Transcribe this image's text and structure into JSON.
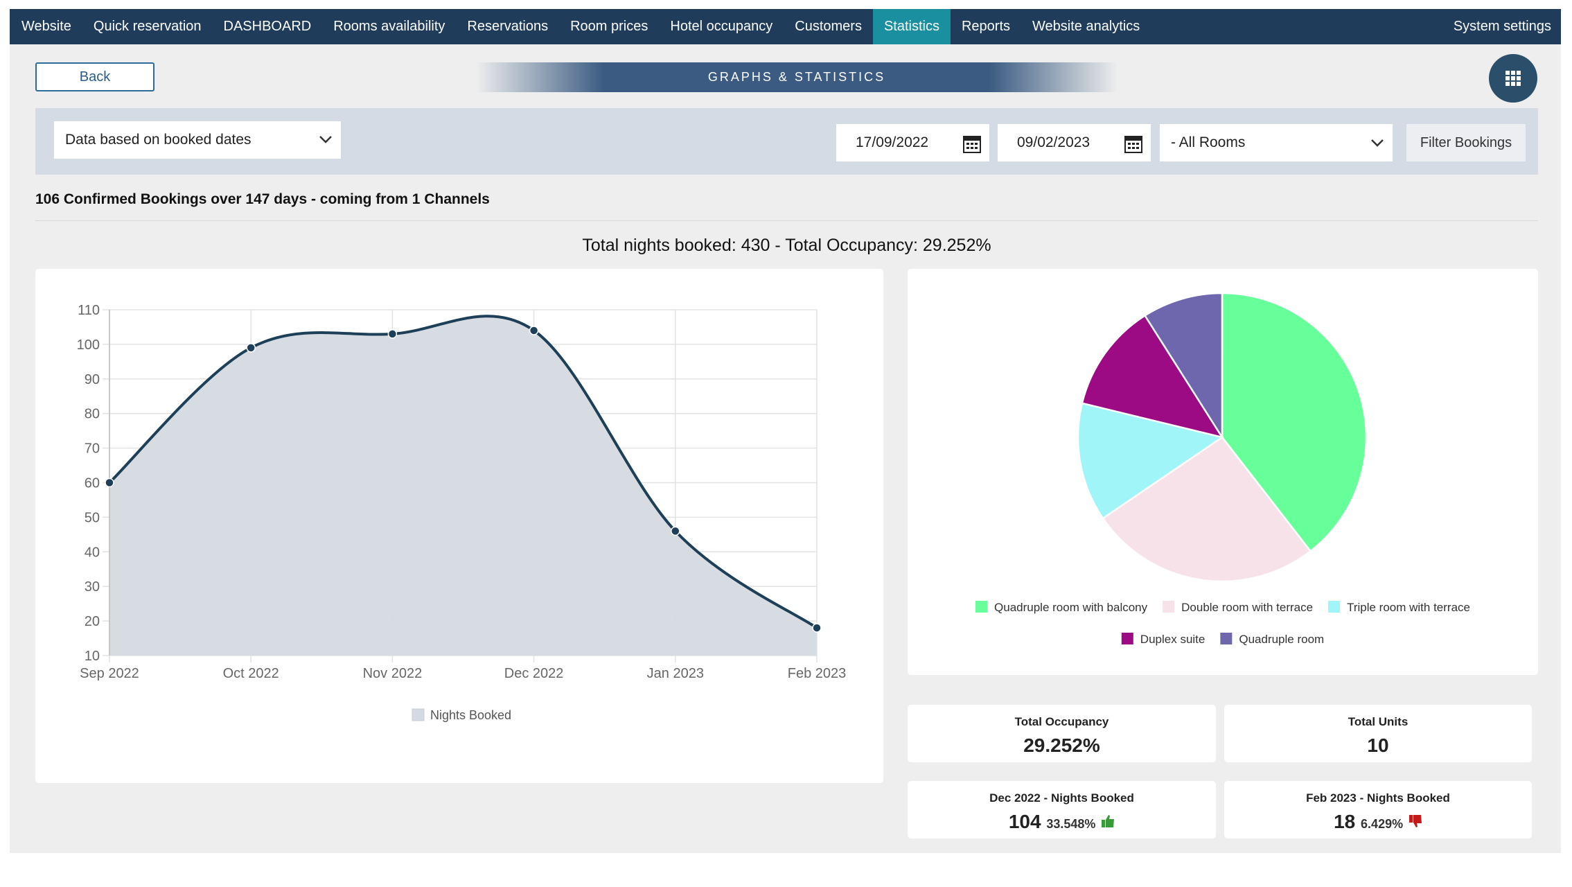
{
  "nav": {
    "items": [
      "Website",
      "Quick reservation",
      "DASHBOARD",
      "Rooms availability",
      "Reservations",
      "Room prices",
      "Hotel occupancy",
      "Customers",
      "Statistics",
      "Reports",
      "Website analytics"
    ],
    "settings": "System settings"
  },
  "back": "Back",
  "header": "GRAPHS & STATISTICS",
  "filters": {
    "basis": "Data based on booked dates",
    "from": "17/09/2022",
    "to": "09/02/2023",
    "rooms": "- All Rooms",
    "button": "Filter Bookings"
  },
  "summary": "106 Confirmed Bookings over 147 days - coming from 1 Channels",
  "totals": "Total nights booked: 430 - Total Occupancy: 29.252%",
  "chart_data": [
    {
      "type": "line",
      "categories": [
        "Sep 2022",
        "Oct 2022",
        "Nov 2022",
        "Dec 2022",
        "Jan 2023",
        "Feb 2023"
      ],
      "series": [
        {
          "name": "Nights Booked",
          "color": "#1d3f58",
          "fill": "#d5dae2",
          "values": [
            60,
            99,
            103,
            104,
            46,
            18
          ]
        }
      ],
      "ylim": [
        10,
        110
      ],
      "yticks": [
        10,
        20,
        30,
        40,
        50,
        60,
        70,
        80,
        90,
        100,
        110
      ],
      "grid": true
    },
    {
      "type": "pie",
      "categories": [
        "Quadruple room with balcony",
        "Double room with terrace",
        "Triple room with terrace",
        "Duplex suite",
        "Quadruple room"
      ],
      "values": [
        39.5,
        26,
        13.3,
        12.2,
        9
      ],
      "colors": [
        "#66ff99",
        "#f8e2ea",
        "#a0f5f8",
        "#9c0a84",
        "#6e67ad"
      ]
    }
  ],
  "stats": [
    {
      "label": "Total Occupancy",
      "value": "29.252%"
    },
    {
      "label": "Total Units",
      "value": "10"
    },
    {
      "label": "Dec 2022 - Nights Booked",
      "value": "104",
      "change": "33.548%"
    },
    {
      "label": "Feb 2023 - Nights Booked",
      "value": "18",
      "change": "6.429%"
    }
  ]
}
